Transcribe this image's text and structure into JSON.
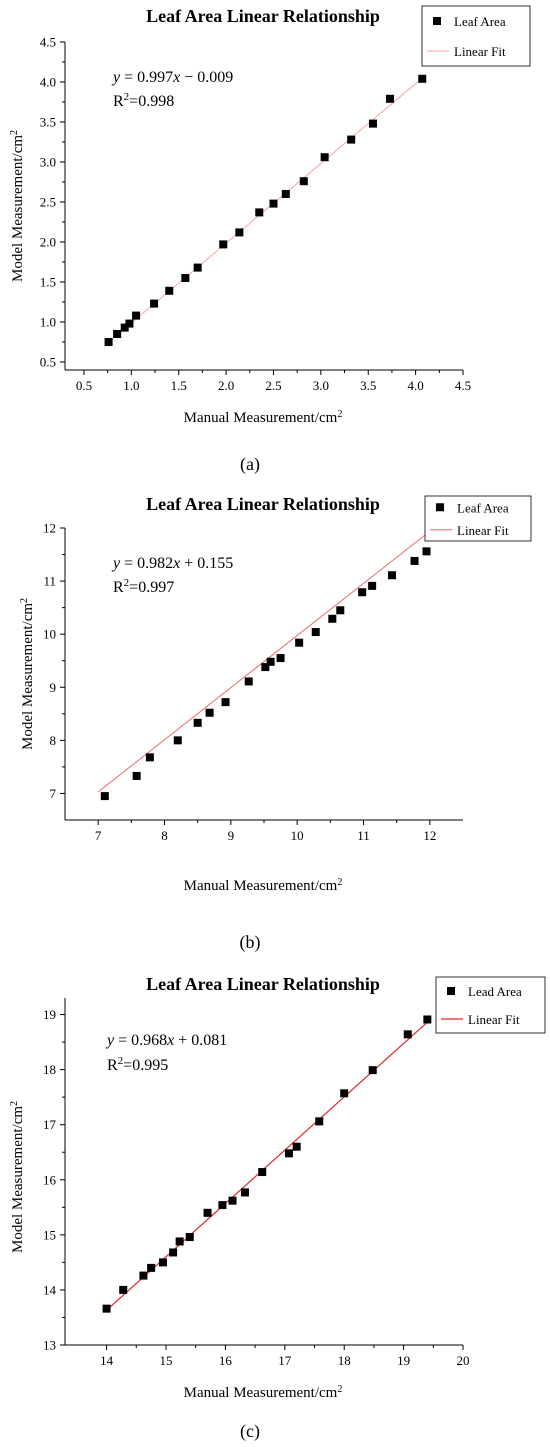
{
  "chart_data": [
    {
      "panel_label": "(a)",
      "type": "scatter",
      "title": "Leaf Area Linear Relationship",
      "xlabel": "Manual Measurement/cm",
      "ylabel": "Model Measurement/cm",
      "unit_superscript": "2",
      "xlim": [
        0.3,
        4.5
      ],
      "ylim": [
        0.4,
        4.5
      ],
      "xticks": [
        0.5,
        1.0,
        1.5,
        2.0,
        2.5,
        3.0,
        3.5,
        4.0,
        4.5
      ],
      "yticks": [
        0.5,
        1.0,
        1.5,
        2.0,
        2.5,
        3.0,
        3.5,
        4.0,
        4.5
      ],
      "xtick_labels": [
        "0.5",
        "1.0",
        "1.5",
        "2.0",
        "2.5",
        "3.0",
        "3.5",
        "4.0",
        "4.5"
      ],
      "ytick_labels": [
        "0.5",
        "1.0",
        "1.5",
        "2.0",
        "2.5",
        "3.0",
        "3.5",
        "4.0",
        "4.5"
      ],
      "equation": {
        "lhs": "y",
        "eq": " = 0.997",
        "var": "x",
        "rest": " − 0.009"
      },
      "r2": {
        "base": "R",
        "sup": "2",
        "value": "=0.998"
      },
      "fit": {
        "slope": 0.997,
        "intercept": -0.009,
        "x_range": [
          0.75,
          4.08
        ],
        "color": "#f4a6a6"
      },
      "legend": [
        "Leaf Area",
        "Linear Fit"
      ],
      "legend_position": "top-right",
      "series": [
        {
          "name": "Leaf Area",
          "points": [
            [
              0.76,
              0.75
            ],
            [
              0.85,
              0.85
            ],
            [
              0.93,
              0.93
            ],
            [
              0.98,
              0.98
            ],
            [
              1.05,
              1.08
            ],
            [
              1.24,
              1.23
            ],
            [
              1.4,
              1.39
            ],
            [
              1.57,
              1.55
            ],
            [
              1.7,
              1.68
            ],
            [
              1.97,
              1.97
            ],
            [
              2.14,
              2.12
            ],
            [
              2.35,
              2.37
            ],
            [
              2.5,
              2.48
            ],
            [
              2.63,
              2.6
            ],
            [
              2.82,
              2.76
            ],
            [
              3.04,
              3.06
            ],
            [
              3.32,
              3.28
            ],
            [
              3.55,
              3.48
            ],
            [
              3.73,
              3.79
            ],
            [
              4.07,
              4.04
            ]
          ]
        }
      ]
    },
    {
      "panel_label": "(b)",
      "type": "scatter",
      "title": "Leaf Area Linear Relationship",
      "xlabel": "Manual Measurement/cm",
      "ylabel": "Model Measurement/cm",
      "unit_superscript": "2",
      "xlim": [
        6.5,
        12.5
      ],
      "ylim": [
        6.5,
        12
      ],
      "xticks": [
        7,
        8,
        9,
        10,
        11,
        12
      ],
      "yticks": [
        7,
        8,
        9,
        10,
        11,
        12
      ],
      "xtick_labels": [
        "7",
        "8",
        "9",
        "10",
        "11",
        "12"
      ],
      "ytick_labels": [
        "7",
        "8",
        "9",
        "10",
        "11",
        "12"
      ],
      "equation": {
        "lhs": "y",
        "eq": " = 0.982",
        "var": "x",
        "rest": " + 0.155"
      },
      "r2": {
        "base": "R",
        "sup": "2",
        "value": "=0.997"
      },
      "fit": {
        "slope": 0.982,
        "intercept": 0.155,
        "x_range": [
          7.0,
          12.0
        ],
        "color": "#e8696b"
      },
      "legend": [
        "Leaf Area",
        "Linear Fit"
      ],
      "legend_position": "top-right",
      "series": [
        {
          "name": "Leaf Area",
          "points": [
            [
              7.1,
              6.95
            ],
            [
              7.58,
              7.33
            ],
            [
              7.78,
              7.68
            ],
            [
              8.2,
              8.0
            ],
            [
              8.5,
              8.33
            ],
            [
              8.68,
              8.52
            ],
            [
              8.92,
              8.72
            ],
            [
              9.27,
              9.11
            ],
            [
              9.52,
              9.38
            ],
            [
              9.6,
              9.48
            ],
            [
              9.75,
              9.55
            ],
            [
              10.03,
              9.84
            ],
            [
              10.28,
              10.04
            ],
            [
              10.53,
              10.29
            ],
            [
              10.65,
              10.45
            ],
            [
              10.98,
              10.79
            ],
            [
              11.13,
              10.91
            ],
            [
              11.43,
              11.11
            ],
            [
              11.77,
              11.38
            ],
            [
              11.95,
              11.56
            ]
          ]
        }
      ]
    },
    {
      "panel_label": "(c)",
      "type": "scatter",
      "title": "Leaf Area Linear Relationship",
      "xlabel": "Manual Measurement/cm",
      "ylabel": "Model Measurement/cm",
      "unit_superscript": "2",
      "xlim": [
        13.3,
        20
      ],
      "ylim": [
        13,
        19.3
      ],
      "xticks": [
        14,
        15,
        16,
        17,
        18,
        19,
        20
      ],
      "yticks": [
        13,
        14,
        15,
        16,
        17,
        18,
        19
      ],
      "xtick_labels": [
        "14",
        "15",
        "16",
        "17",
        "18",
        "19",
        "20"
      ],
      "ytick_labels": [
        "13",
        "14",
        "15",
        "16",
        "17",
        "18",
        "19"
      ],
      "equation": {
        "lhs": "y",
        "eq": " = 0.968",
        "var": "x",
        "rest": " + 0.081"
      },
      "r2": {
        "base": "R",
        "sup": "2",
        "value": "=0.995"
      },
      "fit": {
        "slope": 0.968,
        "intercept": 0.081,
        "x_range": [
          14.0,
          19.4
        ],
        "color": "#dd2a2a"
      },
      "legend": [
        "Lead Area",
        "Linear Fit"
      ],
      "legend_position": "top-right",
      "series": [
        {
          "name": "Lead Area",
          "points": [
            [
              14.0,
              13.66
            ],
            [
              14.28,
              14.0
            ],
            [
              14.62,
              14.26
            ],
            [
              14.75,
              14.4
            ],
            [
              14.95,
              14.5
            ],
            [
              15.12,
              14.68
            ],
            [
              15.23,
              14.88
            ],
            [
              15.4,
              14.96
            ],
            [
              15.7,
              15.4
            ],
            [
              15.95,
              15.54
            ],
            [
              16.12,
              15.62
            ],
            [
              16.33,
              15.77
            ],
            [
              16.62,
              16.14
            ],
            [
              17.07,
              16.48
            ],
            [
              17.2,
              16.6
            ],
            [
              17.58,
              17.06
            ],
            [
              18.0,
              17.57
            ],
            [
              18.48,
              17.99
            ],
            [
              19.07,
              18.64
            ],
            [
              19.4,
              18.91
            ]
          ]
        }
      ]
    }
  ]
}
